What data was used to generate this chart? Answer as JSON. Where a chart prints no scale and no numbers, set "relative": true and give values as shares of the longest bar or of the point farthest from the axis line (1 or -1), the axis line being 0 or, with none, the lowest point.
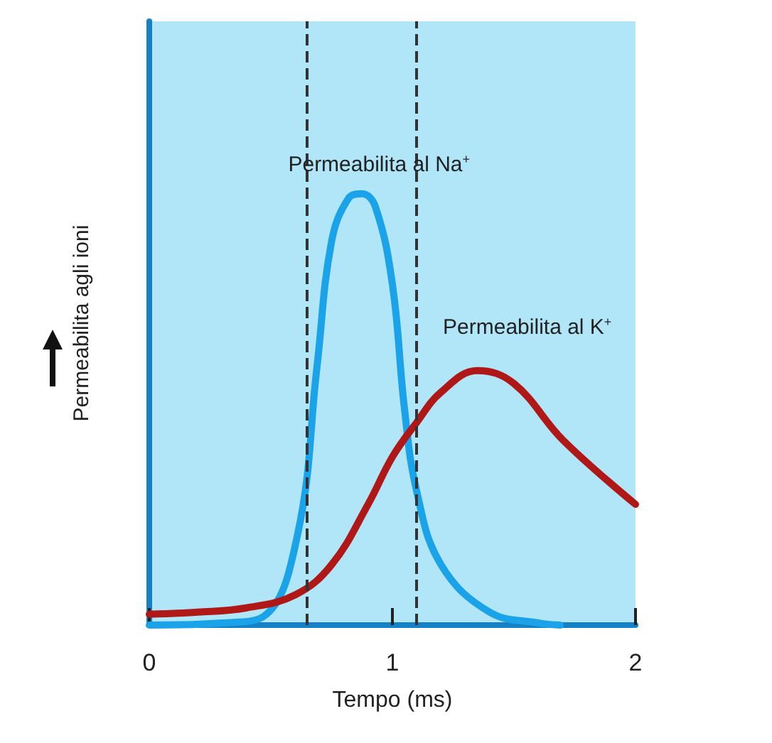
{
  "chart_data": {
    "type": "line",
    "relative": true,
    "xlabel": "Tempo (ms)",
    "ylabel": "Permeabilita agli ioni",
    "xlim": [
      0,
      2
    ],
    "xticks": [
      0,
      1,
      2
    ],
    "grid": false,
    "legend": false,
    "marker": "none",
    "line_style": "solid",
    "series": [
      {
        "name": "Permeabilita al Na$^{+}$",
        "color": "#1aa3e8",
        "x": [
          0,
          0.3,
          0.47,
          0.61,
          0.69,
          0.75,
          0.82,
          0.875,
          0.93,
          1.0,
          1.05,
          1.1,
          1.2,
          1.4,
          1.6,
          1.69
        ],
        "values": [
          0,
          0.005,
          0.02,
          0.21,
          0.6,
          0.89,
          0.99,
          1,
          0.97,
          0.79,
          0.5,
          0.31,
          0.14,
          0.03,
          0.005,
          0
        ]
      },
      {
        "name": "Permeabilita al K$^{+}$",
        "color": "#b01818",
        "x": [
          0,
          0.2,
          0.4,
          0.6,
          0.75,
          0.9,
          1.0,
          1.1,
          1.2,
          1.35,
          1.5,
          1.7,
          2.0
        ],
        "values": [
          0.025,
          0.03,
          0.04,
          0.07,
          0.14,
          0.28,
          0.39,
          0.47,
          0.54,
          0.59,
          0.56,
          0.43,
          0.28
        ]
      }
    ],
    "ref_lines": [
      {
        "axis": "x",
        "value": 0.65,
        "color": "#333333",
        "line_style": "dashed"
      },
      {
        "axis": "x",
        "value": 1.1,
        "color": "#333333",
        "line_style": "dashed"
      }
    ]
  }
}
